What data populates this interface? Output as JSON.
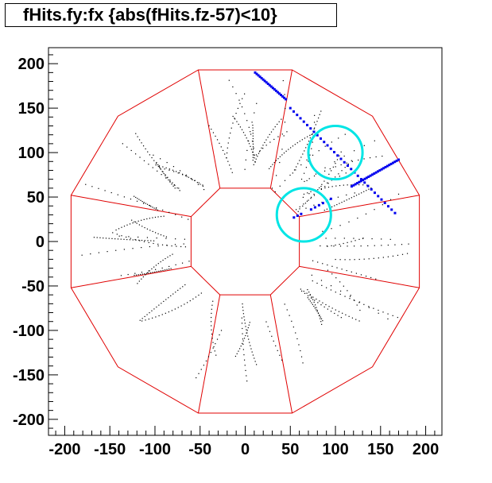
{
  "chart_data": {
    "type": "scatter",
    "title": "fHits.fy:fx {abs(fHits.fz-57)<10}",
    "xlim": [
      -218,
      218
    ],
    "ylim": [
      -218,
      218
    ],
    "x_ticks": [
      -200,
      -150,
      -100,
      -50,
      0,
      50,
      100,
      150,
      200
    ],
    "y_ticks": [
      200,
      150,
      100,
      50,
      0,
      -50,
      -100,
      -150,
      -200
    ],
    "x_tick_labels": [
      "-200",
      "-150",
      "-100",
      "-50",
      "0",
      "50",
      "100",
      "150",
      "200"
    ],
    "y_tick_labels": [
      "200",
      "150",
      "100",
      "50",
      "0",
      "-50",
      "-100",
      "-150",
      "-200"
    ],
    "grid": false,
    "colors": {
      "detector": "#e00000",
      "hits": "#0000ee",
      "circles": "#00e5e5",
      "background_hits": "#000000"
    },
    "detector": {
      "inner_polygon": [
        [
          -28,
          60
        ],
        [
          28,
          60
        ],
        [
          60,
          28
        ],
        [
          60,
          -28
        ],
        [
          28,
          -60
        ],
        [
          -28,
          -60
        ],
        [
          -60,
          -28
        ],
        [
          -60,
          28
        ]
      ],
      "outer_polygon": [
        [
          -52,
          193
        ],
        [
          52,
          193
        ],
        [
          141,
          141
        ],
        [
          193,
          52
        ],
        [
          193,
          -52
        ],
        [
          141,
          -141
        ],
        [
          52,
          -193
        ],
        [
          -52,
          -193
        ],
        [
          -141,
          -141
        ],
        [
          -193,
          -52
        ],
        [
          -193,
          52
        ],
        [
          -141,
          141
        ]
      ]
    },
    "circles": [
      {
        "cx": 100,
        "cy": 100,
        "r": 30
      },
      {
        "cx": 65,
        "cy": 30,
        "r": 30
      }
    ],
    "tracks": [
      {
        "x0": 11,
        "y0": 190,
        "x1": 45,
        "y1": 160,
        "n": 20
      },
      {
        "x0": 50,
        "y0": 150,
        "x1": 166,
        "y1": 32,
        "n": 32
      },
      {
        "x0": 118,
        "y0": 62,
        "x1": 170,
        "y1": 92,
        "n": 26
      },
      {
        "x0": 73,
        "y0": 36,
        "x1": 95,
        "y1": 48,
        "n": 6
      },
      {
        "x0": 54,
        "y0": 27,
        "x1": 62,
        "y1": 31,
        "n": 3
      }
    ]
  }
}
